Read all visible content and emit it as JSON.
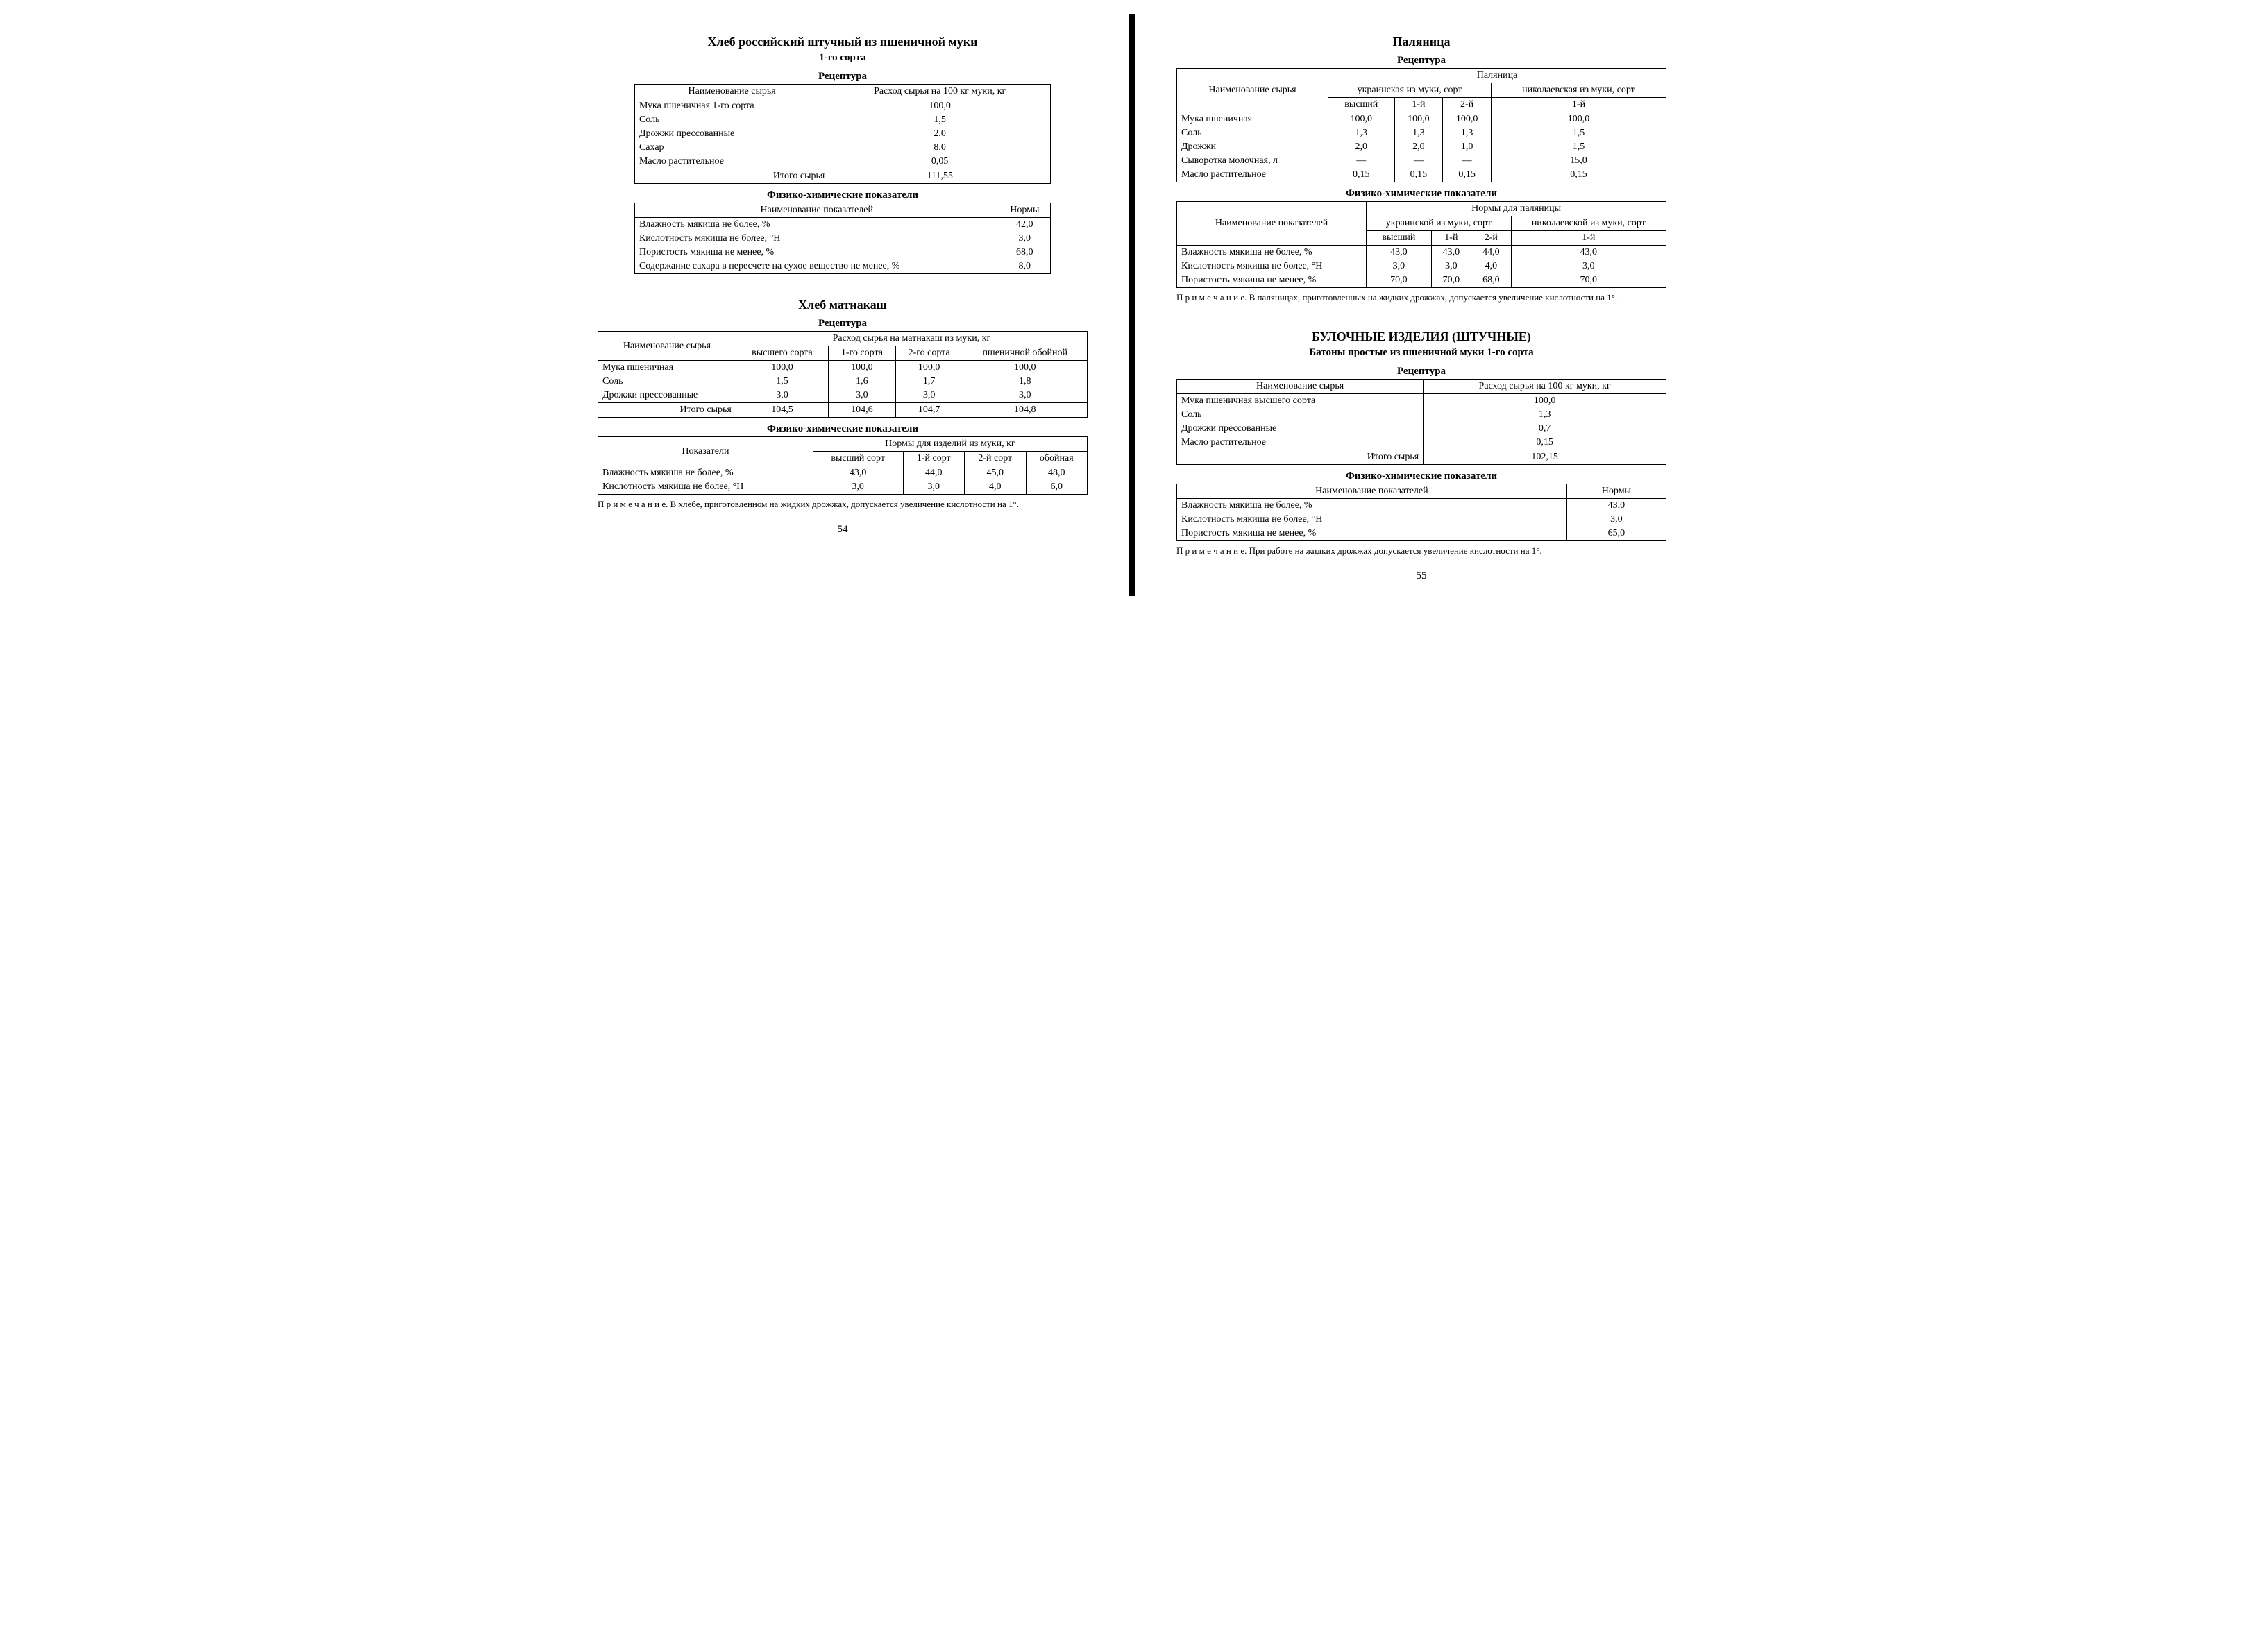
{
  "left": {
    "section1": {
      "title": "Хлеб российский штучный из пшеничной муки",
      "subtitle": "1-го сорта",
      "recipe_label": "Рецептура",
      "col_name": "Наименование сырья",
      "col_amount": "Расход сырья на 100 кг муки, кг",
      "rows": [
        {
          "n": "Мука пшеничная 1-го сорта",
          "v": "100,0"
        },
        {
          "n": "Соль",
          "v": "1,5"
        },
        {
          "n": "Дрожжи прессованные",
          "v": "2,0"
        },
        {
          "n": "Сахар",
          "v": "8,0"
        },
        {
          "n": "Масло растительное",
          "v": "0,05"
        }
      ],
      "total_label": "Итого сырья",
      "total_value": "111,55",
      "phys_label": "Физико-химические показатели",
      "phys_col_name": "Наименование показателей",
      "phys_col_norm": "Нормы",
      "phys_rows": [
        {
          "n": "Влажность мякиша не более, %",
          "v": "42,0"
        },
        {
          "n": "Кислотность мякиша не более, °Н",
          "v": "3,0"
        },
        {
          "n": "Пористость мякиша не менее, %",
          "v": "68,0"
        },
        {
          "n": "Содержание сахара в пересчете на сухое вещество не менее, %",
          "v": "8,0"
        }
      ]
    },
    "section2": {
      "title": "Хлеб матнакаш",
      "recipe_label": "Рецептура",
      "col_name": "Наименование сырья",
      "col_sub": "Расход сырья на матнакаш из муки, кг",
      "subcols": [
        "высшего сорта",
        "1-го сорта",
        "2-го сорта",
        "пшеничной обойной"
      ],
      "rows": [
        {
          "n": "Мука пшеничная",
          "v": [
            "100,0",
            "100,0",
            "100,0",
            "100,0"
          ]
        },
        {
          "n": "Соль",
          "v": [
            "1,5",
            "1,6",
            "1,7",
            "1,8"
          ]
        },
        {
          "n": "Дрожжи прессованные",
          "v": [
            "3,0",
            "3,0",
            "3,0",
            "3,0"
          ]
        }
      ],
      "total_label": "Итого сырья",
      "total_values": [
        "104,5",
        "104,6",
        "104,7",
        "104,8"
      ],
      "phys_label": "Физико-химические показатели",
      "phys_col_name": "Показатели",
      "phys_col_sub": "Нормы для изделий из муки, кг",
      "phys_subcols": [
        "высший сорт",
        "1-й сорт",
        "2-й сорт",
        "обойная"
      ],
      "phys_rows": [
        {
          "n": "Влажность мякиша не более, %",
          "v": [
            "43,0",
            "44,0",
            "45,0",
            "48,0"
          ]
        },
        {
          "n": "Кислотность мякиша не более, °Н",
          "v": [
            "3,0",
            "3,0",
            "4,0",
            "6,0"
          ]
        }
      ],
      "note": "П р и м е ч а н и е. В хлебе, приготовленном на жидких дрожжах, допускается увеличение кислотности на 1°."
    },
    "pagenum": "54"
  },
  "right": {
    "section1": {
      "title": "Паляница",
      "recipe_label": "Рецептура",
      "col_name": "Наименование сырья",
      "group_top": "Паляница",
      "group_ukr": "украинская из муки, сорт",
      "group_nik": "николаевская из муки, сорт",
      "subcols": [
        "высший",
        "1-й",
        "2-й",
        "1-й"
      ],
      "rows": [
        {
          "n": "Мука пшеничная",
          "v": [
            "100,0",
            "100,0",
            "100,0",
            "100,0"
          ]
        },
        {
          "n": "Соль",
          "v": [
            "1,3",
            "1,3",
            "1,3",
            "1,5"
          ]
        },
        {
          "n": "Дрожжи",
          "v": [
            "2,0",
            "2,0",
            "1,0",
            "1,5"
          ]
        },
        {
          "n": "Сыворотка молочная, л",
          "v": [
            "—",
            "—",
            "—",
            "15,0"
          ]
        },
        {
          "n": "Масло растительное",
          "v": [
            "0,15",
            "0,15",
            "0,15",
            "0,15"
          ]
        }
      ],
      "phys_label": "Физико-химические показатели",
      "phys_col_name": "Наименование показателей",
      "phys_group_top": "Нормы для паляницы",
      "phys_group_ukr": "украинской из муки, сорт",
      "phys_group_nik": "николаевской из муки, сорт",
      "phys_subcols": [
        "высший",
        "1-й",
        "2-й",
        "1-й"
      ],
      "phys_rows": [
        {
          "n": "Влажность мякиша не более, %",
          "v": [
            "43,0",
            "43,0",
            "44,0",
            "43,0"
          ]
        },
        {
          "n": "Кислотность мякиша не более, °Н",
          "v": [
            "3,0",
            "3,0",
            "4,0",
            "3,0"
          ]
        },
        {
          "n": "Пористость мякиша не менее, %",
          "v": [
            "70,0",
            "70,0",
            "68,0",
            "70,0"
          ]
        }
      ],
      "note": "П р и м е ч а н и е. В паляницах, приготовленных на жидких дрожжах, допускается увеличение кислотности на 1°."
    },
    "section2": {
      "title": "БУЛОЧНЫЕ ИЗДЕЛИЯ (ШТУЧНЫЕ)",
      "subtitle": "Батоны простые из пшеничной муки 1-го сорта",
      "recipe_label": "Рецептура",
      "col_name": "Наименование сырья",
      "col_amount": "Расход сырья на 100 кг муки, кг",
      "rows": [
        {
          "n": "Мука пшеничная высшего сорта",
          "v": "100,0"
        },
        {
          "n": "Соль",
          "v": "1,3"
        },
        {
          "n": "Дрожжи прессованные",
          "v": "0,7"
        },
        {
          "n": "Масло растительное",
          "v": "0,15"
        }
      ],
      "total_label": "Итого сырья",
      "total_value": "102,15",
      "phys_label": "Физико-химические показатели",
      "phys_col_name": "Наименование показателей",
      "phys_col_norm": "Нормы",
      "phys_rows": [
        {
          "n": "Влажность мякиша не более, %",
          "v": "43,0"
        },
        {
          "n": "Кислотность мякиша не более, °Н",
          "v": "3,0"
        },
        {
          "n": "Пористость мякиша не менее, %",
          "v": "65,0"
        }
      ],
      "note": "П р и м е ч а н и е. При работе на жидких дрожжах допускается увеличение кислотности на 1°."
    },
    "pagenum": "55"
  }
}
